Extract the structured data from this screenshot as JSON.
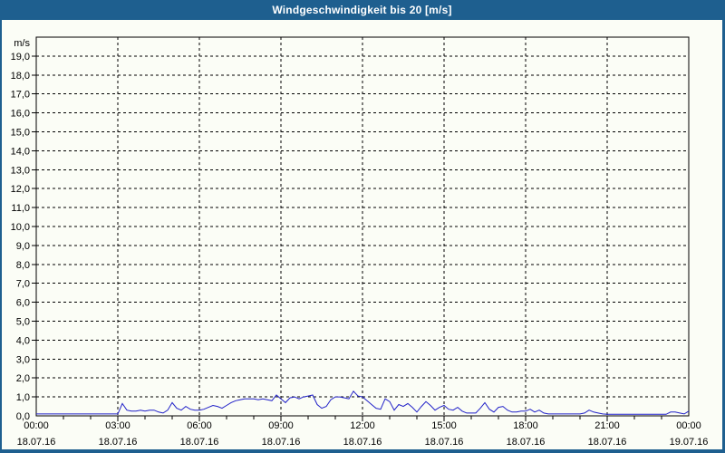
{
  "title": "Windgeschwindigkeit bis 20 [m/s]",
  "colors": {
    "titlebar_bg": "#1e5f8f",
    "titlebar_text": "#ffffff",
    "frame": "#1e5f8f",
    "content_bg": "#fbfdf6",
    "grid": "#000000",
    "axis": "#000000",
    "line": "#2020c8",
    "label_text": "#000000"
  },
  "y_axis": {
    "unit_label": "m/s",
    "min": 0,
    "max": 20,
    "tick_step": 1,
    "tick_labels": [
      "0,0",
      "1,0",
      "2,0",
      "3,0",
      "4,0",
      "5,0",
      "6,0",
      "7,0",
      "8,0",
      "9,0",
      "10,0",
      "11,0",
      "12,0",
      "13,0",
      "14,0",
      "15,0",
      "16,0",
      "17,0",
      "18,0",
      "19,0"
    ]
  },
  "x_axis": {
    "minor_tick_every_hours": 1,
    "ticks": [
      {
        "hour": 0,
        "time": "00:00",
        "date": "18.07.16"
      },
      {
        "hour": 3,
        "time": "03:00",
        "date": "18.07.16"
      },
      {
        "hour": 6,
        "time": "06:00",
        "date": "18.07.16"
      },
      {
        "hour": 9,
        "time": "09:00",
        "date": "18.07.16"
      },
      {
        "hour": 12,
        "time": "12:00",
        "date": "18.07.16"
      },
      {
        "hour": 15,
        "time": "15:00",
        "date": "18.07.16"
      },
      {
        "hour": 18,
        "time": "18:00",
        "date": "18.07.16"
      },
      {
        "hour": 21,
        "time": "21:00",
        "date": "18.07.16"
      },
      {
        "hour": 24,
        "time": "00:00",
        "date": "19.07.16"
      }
    ]
  },
  "chart_data": {
    "type": "line",
    "title": "Windgeschwindigkeit bis 20 [m/s]",
    "ylabel": "m/s",
    "ylim": [
      0,
      20
    ],
    "xlim_hours": [
      0,
      24
    ],
    "x_start_label": "00:00 18.07.16",
    "x_end_label": "00:00 19.07.16",
    "grid": true,
    "legend": false,
    "interval_minutes": 10,
    "series": [
      {
        "name": "Windgeschwindigkeit",
        "color": "#2020c8",
        "values": [
          0.1,
          0.1,
          0.1,
          0.1,
          0.1,
          0.1,
          0.1,
          0.1,
          0.1,
          0.1,
          0.1,
          0.1,
          0.1,
          0.1,
          0.1,
          0.1,
          0.1,
          0.1,
          0.1,
          0.65,
          0.3,
          0.25,
          0.25,
          0.3,
          0.25,
          0.3,
          0.3,
          0.2,
          0.15,
          0.3,
          0.7,
          0.4,
          0.3,
          0.5,
          0.35,
          0.3,
          0.3,
          0.35,
          0.45,
          0.55,
          0.5,
          0.4,
          0.55,
          0.7,
          0.8,
          0.85,
          0.9,
          0.9,
          0.9,
          0.85,
          0.9,
          0.85,
          0.8,
          1.1,
          0.9,
          0.7,
          0.95,
          1.0,
          0.9,
          1.0,
          1.05,
          1.1,
          0.6,
          0.4,
          0.5,
          0.85,
          1.0,
          1.0,
          0.95,
          0.9,
          1.3,
          1.05,
          1.0,
          0.8,
          0.6,
          0.4,
          0.35,
          0.9,
          0.75,
          0.3,
          0.6,
          0.5,
          0.65,
          0.45,
          0.2,
          0.5,
          0.75,
          0.55,
          0.3,
          0.45,
          0.55,
          0.35,
          0.3,
          0.45,
          0.25,
          0.15,
          0.15,
          0.15,
          0.4,
          0.7,
          0.35,
          0.2,
          0.45,
          0.5,
          0.3,
          0.2,
          0.2,
          0.25,
          0.25,
          0.35,
          0.2,
          0.3,
          0.15,
          0.1,
          0.1,
          0.1,
          0.1,
          0.1,
          0.1,
          0.1,
          0.1,
          0.15,
          0.3,
          0.2,
          0.15,
          0.1,
          0.08,
          0.08,
          0.08,
          0.08,
          0.08,
          0.08,
          0.08,
          0.08,
          0.08,
          0.08,
          0.08,
          0.08,
          0.08,
          0.08,
          0.2,
          0.2,
          0.15,
          0.1,
          0.25
        ]
      }
    ]
  }
}
